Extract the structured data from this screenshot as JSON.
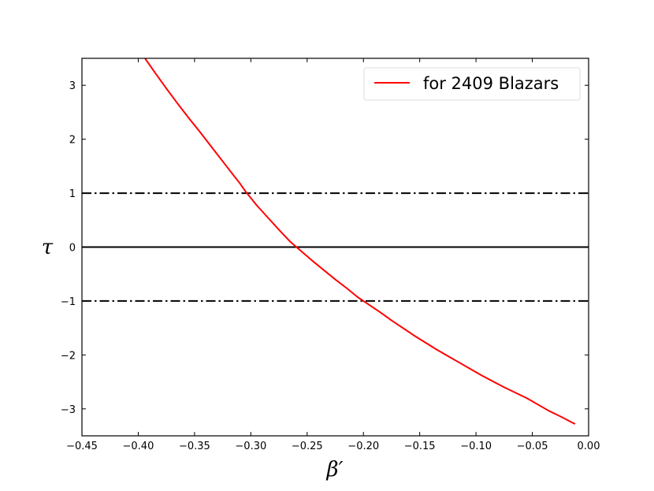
{
  "chart_data": {
    "type": "line",
    "xlabel": "β′",
    "ylabel": "τ",
    "xlim": [
      -0.45,
      0.0
    ],
    "ylim": [
      -3.5,
      3.5
    ],
    "xticks": [
      -0.45,
      -0.4,
      -0.35,
      -0.3,
      -0.25,
      -0.2,
      -0.15,
      -0.1,
      -0.05,
      0.0
    ],
    "xtick_labels": [
      "−0.45",
      "−0.40",
      "−0.35",
      "−0.30",
      "−0.25",
      "−0.20",
      "−0.15",
      "−0.10",
      "−0.05",
      "0.00"
    ],
    "yticks": [
      -3,
      -2,
      -1,
      0,
      1,
      2,
      3
    ],
    "ytick_labels": [
      "−3",
      "−2",
      "−1",
      "0",
      "1",
      "2",
      "3"
    ],
    "grid": false,
    "legend": {
      "position": "top-right",
      "entries": [
        "for 2409 Blazars"
      ]
    },
    "series": [
      {
        "name": "for 2409 Blazars",
        "color": "#ff0000",
        "x": [
          -0.394,
          -0.385,
          -0.375,
          -0.365,
          -0.355,
          -0.345,
          -0.335,
          -0.325,
          -0.315,
          -0.31,
          -0.305,
          -0.295,
          -0.285,
          -0.275,
          -0.265,
          -0.255,
          -0.245,
          -0.235,
          -0.225,
          -0.215,
          -0.205,
          -0.195,
          -0.185,
          -0.175,
          -0.165,
          -0.155,
          -0.145,
          -0.135,
          -0.125,
          -0.115,
          -0.105,
          -0.095,
          -0.085,
          -0.075,
          -0.065,
          -0.055,
          -0.045,
          -0.035,
          -0.025,
          -0.015,
          -0.012
        ],
        "y": [
          3.5,
          3.23,
          2.94,
          2.66,
          2.39,
          2.13,
          1.86,
          1.59,
          1.32,
          1.19,
          1.04,
          0.78,
          0.55,
          0.32,
          0.1,
          -0.08,
          -0.26,
          -0.43,
          -0.6,
          -0.76,
          -0.93,
          -1.07,
          -1.21,
          -1.36,
          -1.5,
          -1.64,
          -1.77,
          -1.9,
          -2.02,
          -2.14,
          -2.26,
          -2.38,
          -2.49,
          -2.6,
          -2.7,
          -2.8,
          -2.92,
          -3.04,
          -3.14,
          -3.25,
          -3.28
        ]
      }
    ],
    "reference_lines": [
      {
        "y": 1,
        "style": "dash-dot",
        "color": "#000000"
      },
      {
        "y": 0,
        "style": "solid",
        "color": "#000000"
      },
      {
        "y": -1,
        "style": "dash-dot",
        "color": "#000000"
      }
    ]
  }
}
